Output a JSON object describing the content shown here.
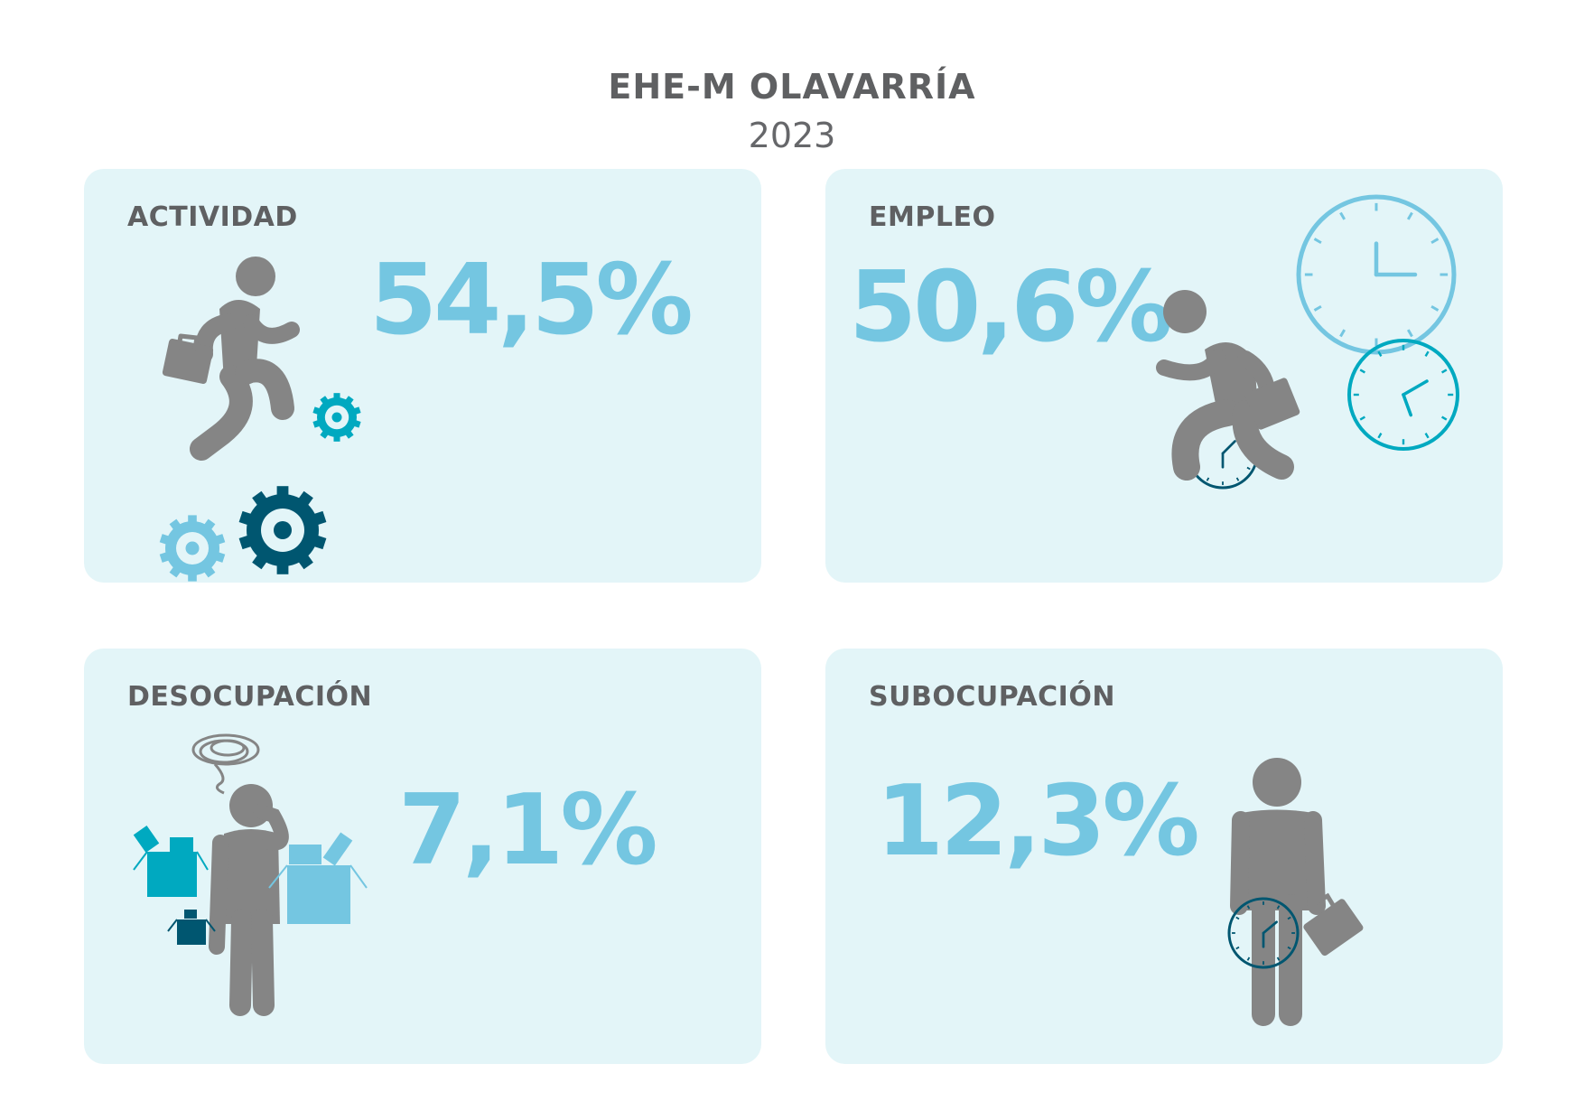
{
  "header": {
    "title": "EHE-M  OLAVARRÍA",
    "year": "2023"
  },
  "cards": [
    {
      "label": "ACTIVIDAD",
      "value": "54,5%",
      "icons": [
        "running-person-icon",
        "briefcase-icon",
        "gear-icon"
      ]
    },
    {
      "label": "EMPLEO",
      "value": "50,6%",
      "icons": [
        "running-person-icon",
        "briefcase-icon",
        "clock-icon"
      ]
    },
    {
      "label": "DESOCUPACIÓN",
      "value": "7,1%",
      "icons": [
        "confused-person-icon",
        "scribble-icon",
        "box-icon"
      ]
    },
    {
      "label": "SUBOCUPACIÓN",
      "value": "12,3%",
      "icons": [
        "standing-person-icon",
        "briefcase-icon",
        "clock-icon"
      ]
    }
  ],
  "colors": {
    "card_bg": "#e3f5f8",
    "value": "#74c6e1",
    "label": "#5f6062",
    "figure": "#858585",
    "teal": "#00a9c0",
    "dark_teal": "#005670",
    "light_blue": "#74c6e1"
  }
}
